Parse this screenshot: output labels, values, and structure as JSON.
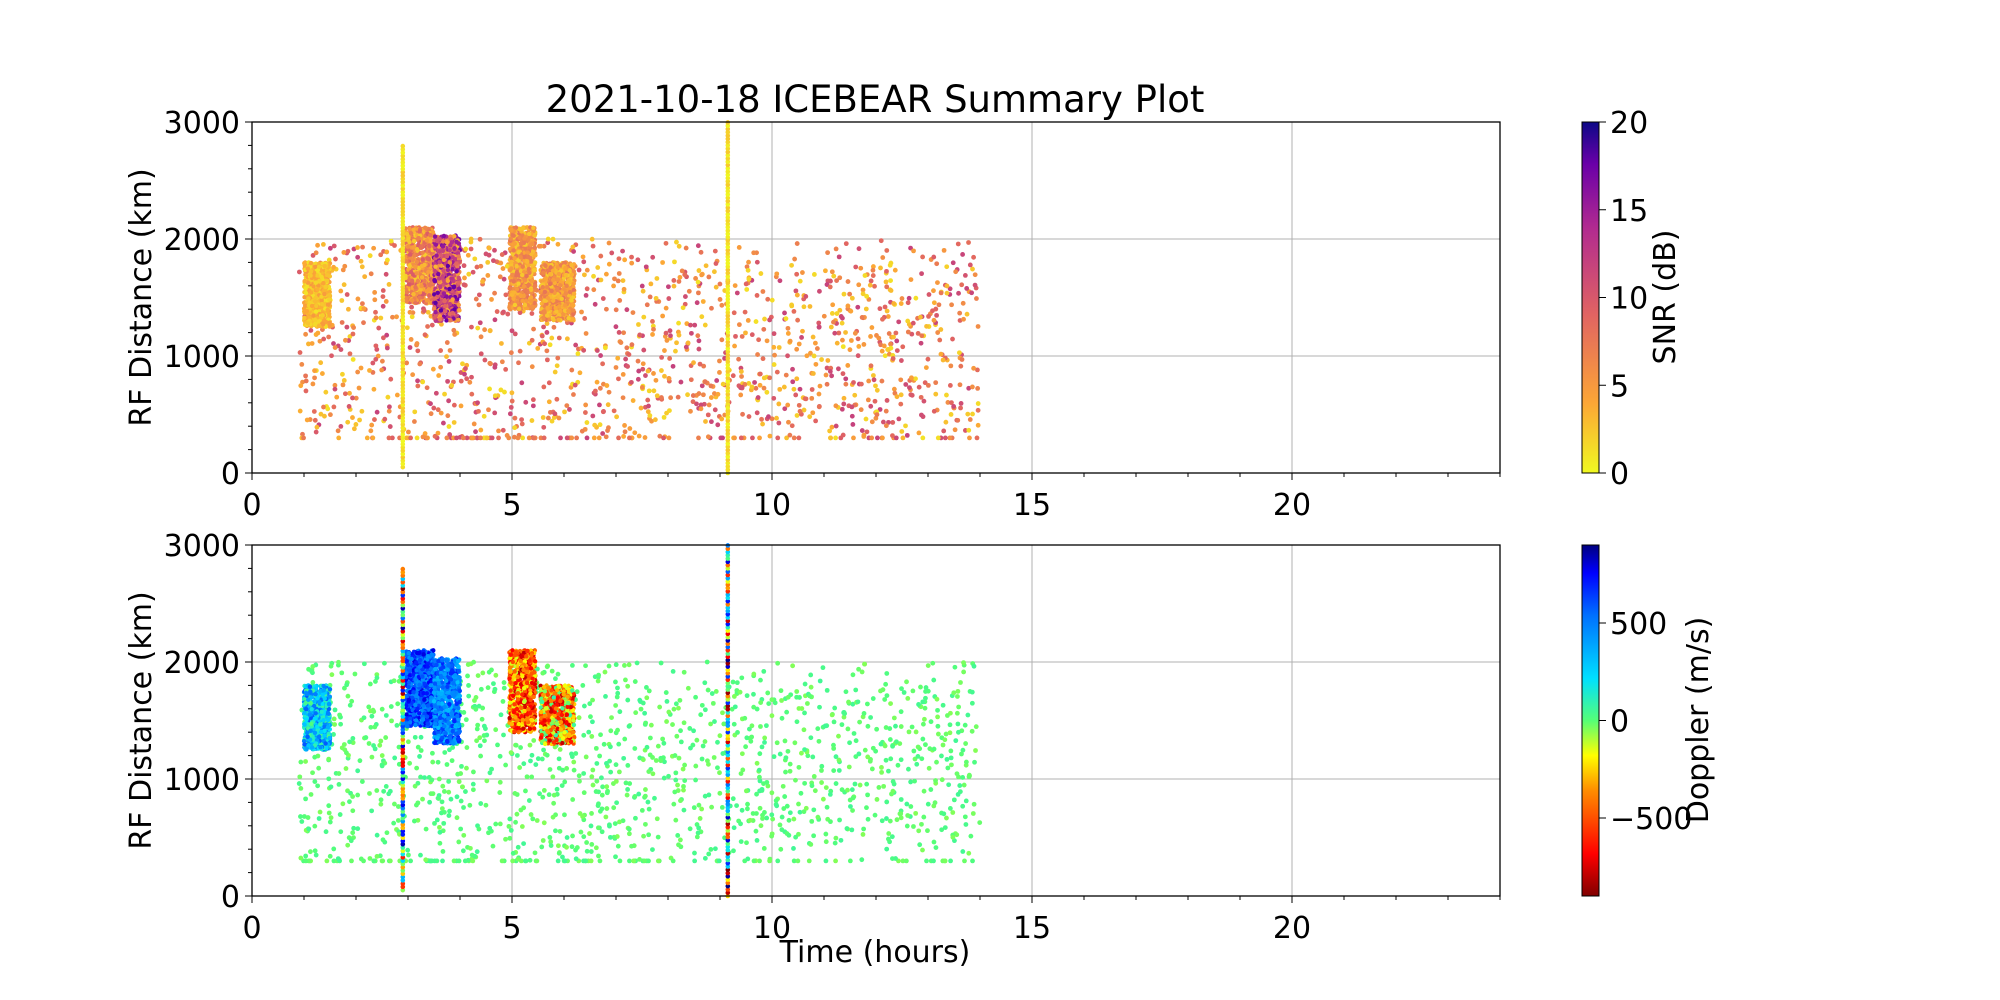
{
  "title": "2021-10-18 ICEBEAR Summary Plot",
  "xlabel": "Time (hours)",
  "chart_data": [
    {
      "type": "scatter",
      "panel": "top",
      "ylabel": "RF Distance (km)",
      "xlim": [
        0,
        24
      ],
      "ylim": [
        0,
        3000
      ],
      "xticks": [
        0,
        5,
        10,
        15,
        20
      ],
      "yticks": [
        0,
        1000,
        2000,
        3000
      ],
      "grid": true,
      "colorbar": {
        "label": "SNR (dB)",
        "colormap": "plasma_r",
        "range": [
          0,
          20
        ],
        "ticks": [
          0,
          5,
          10,
          15,
          20
        ]
      },
      "clusters": [
        {
          "x": [
            1.0,
            1.5
          ],
          "y": [
            1250,
            1800
          ],
          "snr_range": [
            1,
            5
          ]
        },
        {
          "x": [
            2.95,
            3.5
          ],
          "y": [
            1450,
            2100
          ],
          "snr_range": [
            2,
            10
          ]
        },
        {
          "x": [
            3.5,
            4.0
          ],
          "y": [
            1300,
            2030
          ],
          "snr_range": [
            3,
            18
          ]
        },
        {
          "x": [
            4.95,
            5.45
          ],
          "y": [
            1400,
            2100
          ],
          "snr_range": [
            2,
            8
          ]
        },
        {
          "x": [
            5.55,
            6.2
          ],
          "y": [
            1300,
            1800
          ],
          "snr_range": [
            2,
            8
          ]
        }
      ],
      "vertical_streaks": [
        {
          "x": 2.9,
          "y": [
            50,
            2800
          ]
        },
        {
          "x": 9.15,
          "y": [
            0,
            3000
          ]
        }
      ],
      "scattered_field": {
        "x": [
          0.9,
          14.0
        ],
        "y": [
          300,
          2000
        ],
        "snr_range": [
          1,
          12
        ]
      }
    },
    {
      "type": "scatter",
      "panel": "bottom",
      "ylabel": "RF Distance (km)",
      "xlim": [
        0,
        24
      ],
      "ylim": [
        0,
        3000
      ],
      "xticks": [
        0,
        5,
        10,
        15,
        20
      ],
      "yticks": [
        0,
        1000,
        2000,
        3000
      ],
      "grid": true,
      "colorbar": {
        "label": "Doppler (m/s)",
        "colormap": "jet_r",
        "range": [
          -900,
          900
        ],
        "ticks": [
          -500,
          0,
          500
        ],
        "tick_labels": [
          "−500",
          "0",
          "500"
        ]
      },
      "clusters": [
        {
          "x": [
            1.0,
            1.5
          ],
          "y": [
            1250,
            1800
          ],
          "doppler_range": [
            0,
            600
          ]
        },
        {
          "x": [
            2.95,
            3.5
          ],
          "y": [
            1450,
            2100
          ],
          "doppler_range": [
            400,
            800
          ]
        },
        {
          "x": [
            3.5,
            4.0
          ],
          "y": [
            1300,
            2030
          ],
          "doppler_range": [
            300,
            700
          ]
        },
        {
          "x": [
            4.95,
            5.45
          ],
          "y": [
            1400,
            2100
          ],
          "doppler_range": [
            -800,
            -100
          ]
        },
        {
          "x": [
            5.55,
            6.2
          ],
          "y": [
            1300,
            1800
          ],
          "doppler_range": [
            -800,
            100
          ]
        }
      ],
      "vertical_streaks": [
        {
          "x": 2.9,
          "y": [
            50,
            2800
          ]
        },
        {
          "x": 9.15,
          "y": [
            0,
            3000
          ]
        }
      ],
      "scattered_field": {
        "x": [
          0.9,
          14.0
        ],
        "y": [
          300,
          2000
        ],
        "doppler_range": [
          -50,
          50
        ]
      }
    }
  ]
}
